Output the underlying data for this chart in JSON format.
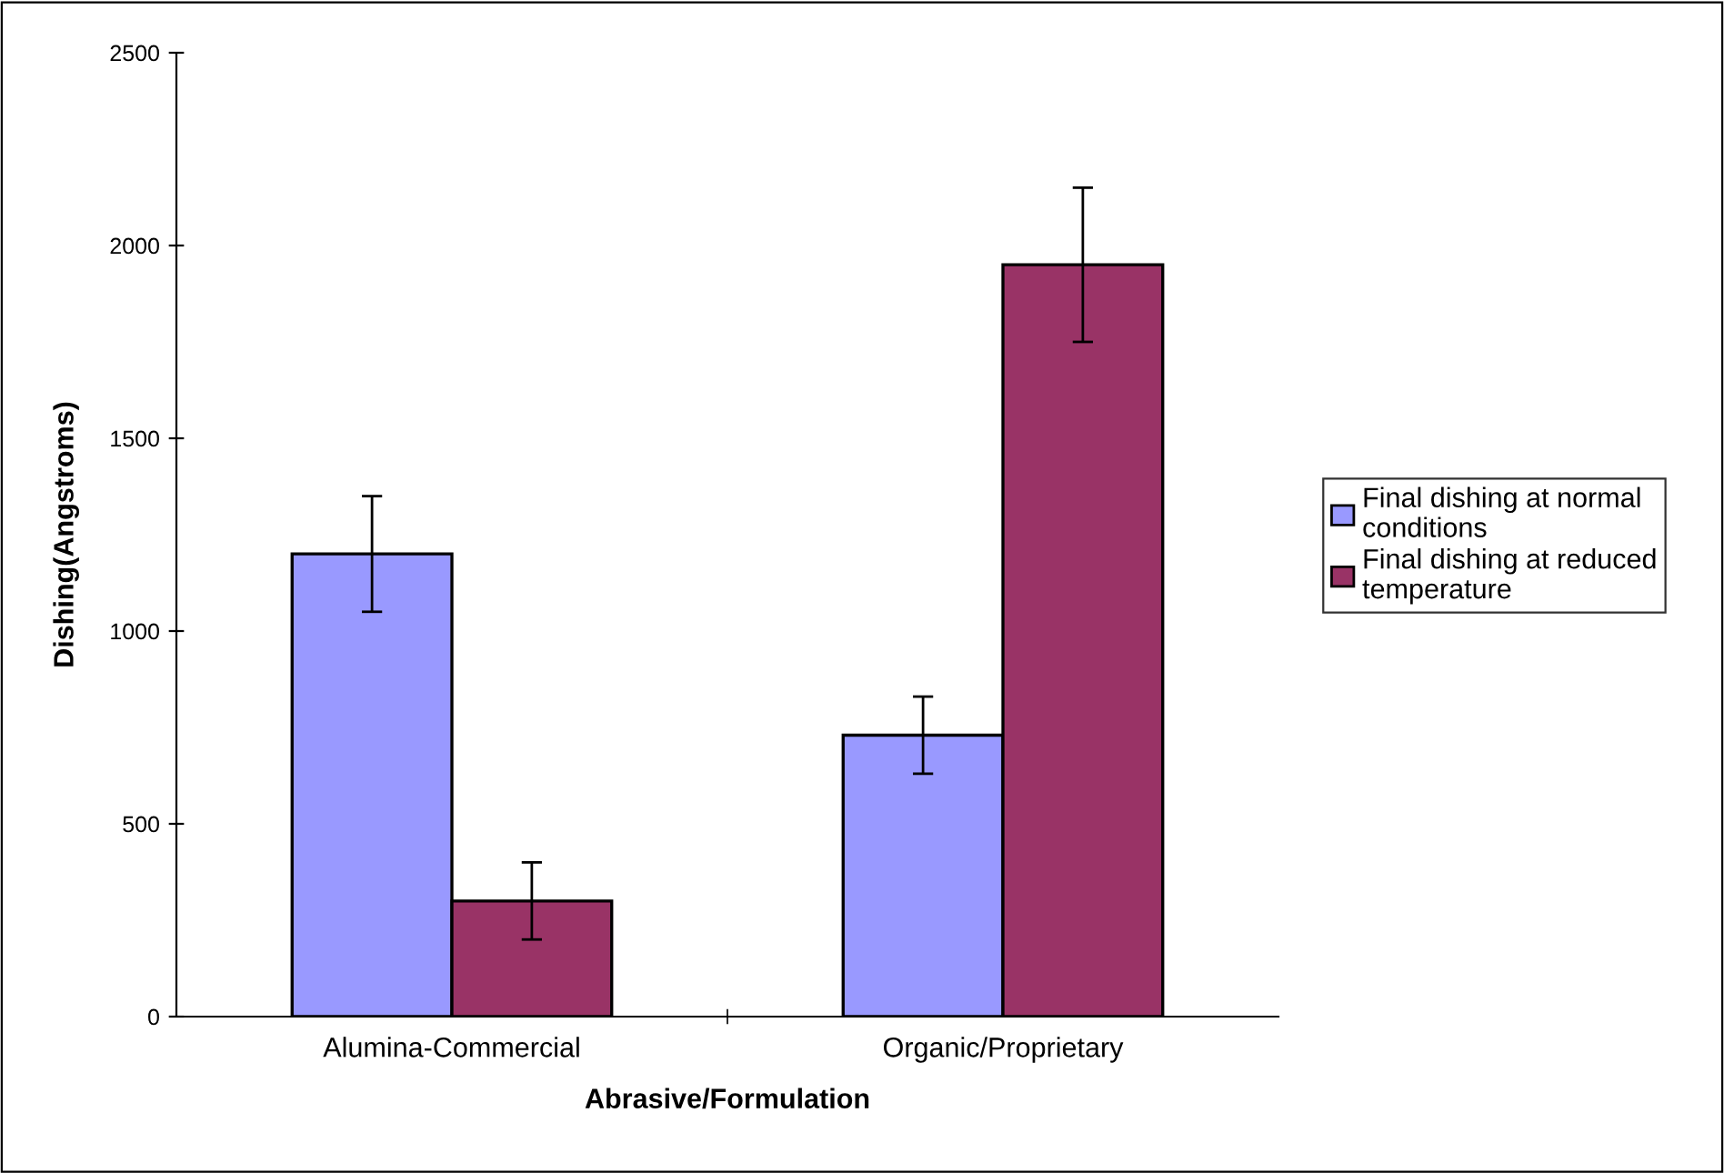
{
  "chart_data": {
    "type": "bar",
    "xlabel": "Abrasive/Formulation",
    "ylabel": "Dishing(Angstroms)",
    "categories": [
      "Alumina-Commercial",
      "Organic/Proprietary"
    ],
    "series": [
      {
        "name": "Final dishing at normal conditions",
        "color": "#9999ff",
        "values": [
          1200,
          730
        ],
        "errors": [
          150,
          100
        ]
      },
      {
        "name": "Final dishing at reduced temperature",
        "color": "#993366",
        "values": [
          300,
          1950
        ],
        "errors": [
          100,
          200
        ]
      }
    ],
    "ylim": [
      0,
      2500
    ],
    "yticks": [
      0,
      500,
      1000,
      1500,
      2000,
      2500
    ],
    "grid": false,
    "legend": "right"
  }
}
